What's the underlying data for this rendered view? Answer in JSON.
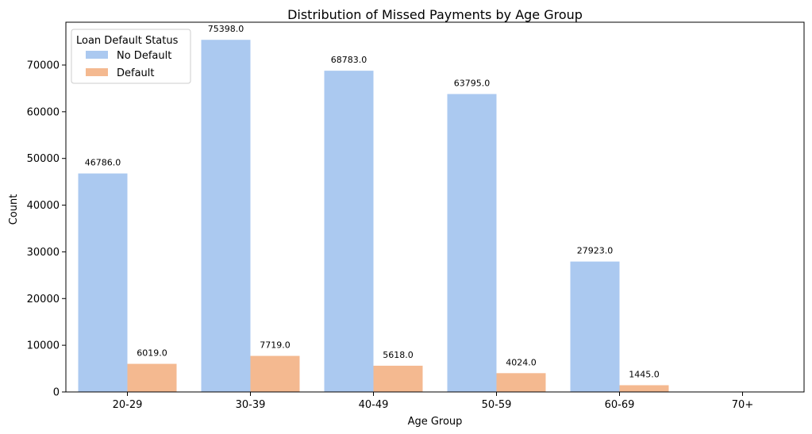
{
  "chart_data": {
    "type": "bar",
    "title": "Distribution of Missed Payments by Age Group",
    "xlabel": "Age Group",
    "ylabel": "Count",
    "categories": [
      "20-29",
      "30-39",
      "40-49",
      "50-59",
      "60-69",
      "70+"
    ],
    "ylim": [
      0,
      79170
    ],
    "yticks": [
      0,
      10000,
      20000,
      30000,
      40000,
      50000,
      60000,
      70000
    ],
    "series": [
      {
        "name": "No Default",
        "color": "#abc9f0",
        "values": [
          46786,
          75398,
          68783,
          63795,
          27923,
          0
        ],
        "labels": [
          "46786.0",
          "75398.0",
          "68783.0",
          "63795.0",
          "27923.0",
          ""
        ]
      },
      {
        "name": "Default",
        "color": "#f4b990",
        "values": [
          6019,
          7719,
          5618,
          4024,
          1445,
          0
        ],
        "labels": [
          "6019.0",
          "7719.0",
          "5618.0",
          "4024.0",
          "1445.0",
          ""
        ]
      }
    ],
    "legend": {
      "title": "Loan Default Status",
      "placement": "top-left"
    },
    "grid": false
  }
}
